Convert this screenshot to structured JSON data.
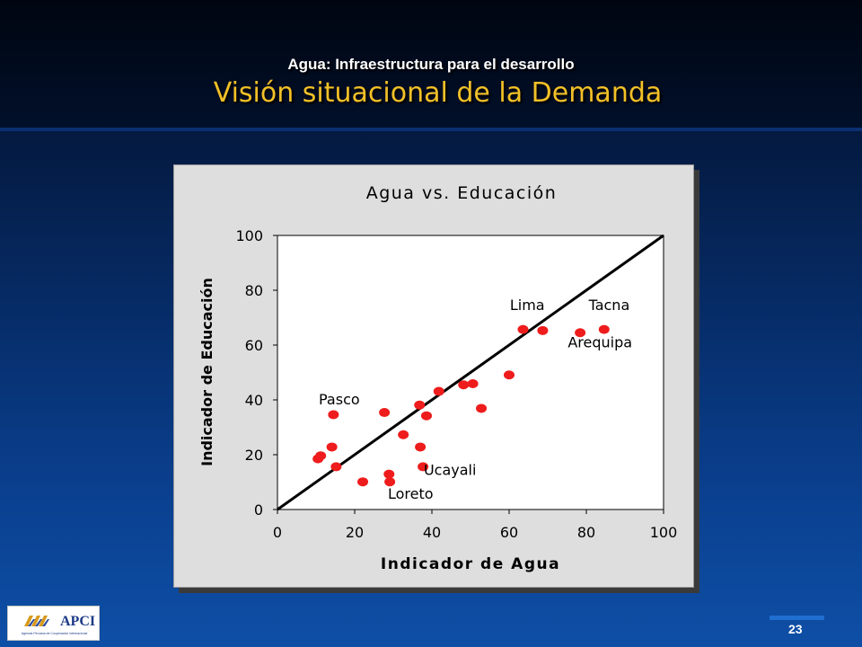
{
  "slide": {
    "subtitle": "Agua: Infraestructura para el desarrollo",
    "title": "Visión situacional de la Demanda",
    "page_number": "23"
  },
  "logo": {
    "text": "APCI",
    "tagline": "Agencia Peruana de Cooperación Internacional"
  },
  "colors": {
    "title": "#f2c027",
    "points": "#ee1c1c",
    "panel": "#dedede",
    "background": "#062a63"
  },
  "chart_data": {
    "type": "scatter",
    "title": "Agua vs. Educación",
    "xlabel": "Indicador de Agua",
    "ylabel": "Indicador de Educación",
    "xlim": [
      0,
      100
    ],
    "ylim": [
      0,
      100
    ],
    "xticks": [
      0,
      20,
      40,
      60,
      80,
      100
    ],
    "yticks": [
      0,
      20,
      40,
      60,
      80,
      100
    ],
    "grid": false,
    "reference_line": {
      "from": [
        0,
        0
      ],
      "to": [
        100,
        100
      ]
    },
    "points": [
      {
        "x": 10.5,
        "y": 18.5
      },
      {
        "x": 11.2,
        "y": 19.6
      },
      {
        "x": 14.1,
        "y": 22.8
      },
      {
        "x": 14.5,
        "y": 34.6
      },
      {
        "x": 15.2,
        "y": 15.6
      },
      {
        "x": 22.1,
        "y": 10.1
      },
      {
        "x": 27.7,
        "y": 35.4
      },
      {
        "x": 28.9,
        "y": 12.9
      },
      {
        "x": 29.1,
        "y": 10.1
      },
      {
        "x": 32.6,
        "y": 27.3
      },
      {
        "x": 36.8,
        "y": 38.1
      },
      {
        "x": 37.0,
        "y": 22.8
      },
      {
        "x": 37.7,
        "y": 15.6
      },
      {
        "x": 38.6,
        "y": 34.2
      },
      {
        "x": 41.8,
        "y": 43.1
      },
      {
        "x": 48.2,
        "y": 45.5
      },
      {
        "x": 50.6,
        "y": 45.9
      },
      {
        "x": 52.8,
        "y": 36.9
      },
      {
        "x": 60.0,
        "y": 49.1
      },
      {
        "x": 63.6,
        "y": 65.7
      },
      {
        "x": 68.7,
        "y": 65.3
      },
      {
        "x": 78.4,
        "y": 64.5
      },
      {
        "x": 84.6,
        "y": 65.7
      }
    ],
    "annotations": [
      {
        "text": "Lima",
        "x": 60.2,
        "y": 72.8
      },
      {
        "text": "Tacna",
        "x": 80.6,
        "y": 72.8
      },
      {
        "text": "Arequipa",
        "x": 75.2,
        "y": 59.2
      },
      {
        "text": "Pasco",
        "x": 10.7,
        "y": 38.4
      },
      {
        "text": "Ucayali",
        "x": 37.9,
        "y": 12.6
      },
      {
        "text": "Loreto",
        "x": 28.6,
        "y": 4.0
      }
    ]
  }
}
